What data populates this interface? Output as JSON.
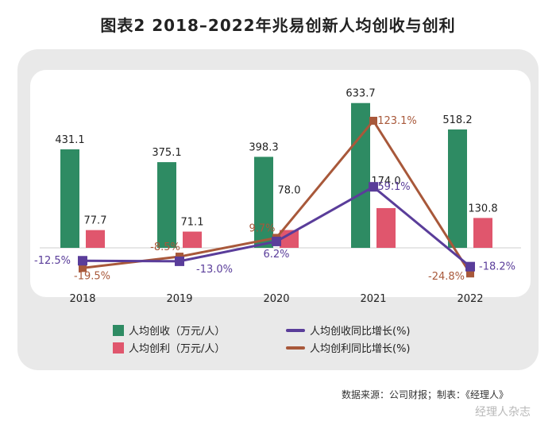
{
  "title": "图表2   2018–2022年兆易创新人均创收与创利",
  "source": "数据来源：公司财报；制表：《经理人》",
  "watermark": "经理人杂志",
  "colors": {
    "revenue_bar": "#2e8b63",
    "profit_bar": "#e0566d",
    "revenue_growth_line": "#5a3d9a",
    "profit_growth_line": "#a8583a"
  },
  "legend": {
    "revenue": "人均创收（万元/人）",
    "profit": "人均创利（万元/人）",
    "revenue_growth": "人均创收同比增长(%)",
    "profit_growth": "人均创利同比增长(%)"
  },
  "chart_data": {
    "type": "bar",
    "categories": [
      "2018",
      "2019",
      "2020",
      "2021",
      "2022"
    ],
    "series": [
      {
        "name": "人均创收（万元/人）",
        "type": "bar",
        "values": [
          431.1,
          375.1,
          398.3,
          633.7,
          518.2
        ],
        "labels": [
          "431.1",
          "375.1",
          "398.3",
          "633.7",
          "518.2"
        ]
      },
      {
        "name": "人均创利（万元/人）",
        "type": "bar",
        "values": [
          77.7,
          71.1,
          78.0,
          174.0,
          130.8
        ],
        "labels": [
          "77.7",
          "71.1",
          "78.0",
          "174.0",
          "130.8"
        ]
      },
      {
        "name": "人均创收同比增长(%)",
        "type": "line",
        "values": [
          -12.5,
          -13.0,
          6.2,
          59.1,
          -18.2
        ],
        "labels": [
          "-12.5%",
          "-13.0%",
          "6.2%",
          "59.1%",
          "-18.2%"
        ]
      },
      {
        "name": "人均创利同比增长(%)",
        "type": "line",
        "values": [
          -19.5,
          -8.5,
          9.7,
          123.1,
          -24.8
        ],
        "labels": [
          "-19.5%",
          "-8.5%",
          "9.7%",
          "123.1%",
          "-24.8%"
        ]
      }
    ],
    "legend_position": "bottom"
  }
}
